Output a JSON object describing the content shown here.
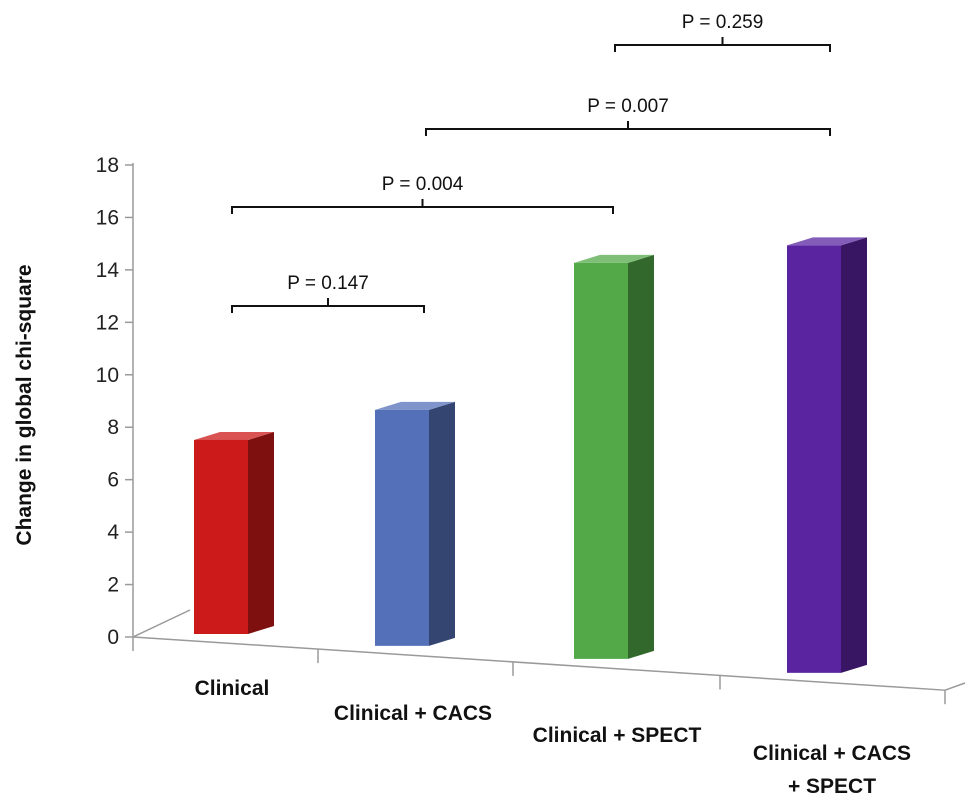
{
  "chart_data": {
    "type": "bar",
    "style": "3d",
    "title": "",
    "xlabel": "",
    "ylabel": "Change in global chi-square",
    "ylim": [
      0,
      18
    ],
    "yticks": [
      0,
      2,
      4,
      6,
      8,
      10,
      12,
      14,
      16,
      18
    ],
    "grid": false,
    "legend": "none",
    "categories": [
      [
        "Clinical"
      ],
      [
        "Clinical + CACS"
      ],
      [
        "Clinical + SPECT"
      ],
      [
        "Clinical + CACS",
        "+ SPECT"
      ]
    ],
    "values": [
      7.4,
      9.0,
      15.1,
      16.3
    ],
    "colors": [
      "#cc1a1a",
      "#5470b8",
      "#53a848",
      "#5a24a0"
    ],
    "comparisons": [
      {
        "from": 0,
        "to": 1,
        "label": "P = 0.147"
      },
      {
        "from": 0,
        "to": 2,
        "label": "P = 0.004"
      },
      {
        "from": 1,
        "to": 3,
        "label": "P = 0.007"
      },
      {
        "from": 2,
        "to": 3,
        "label": "P = 0.259"
      }
    ]
  }
}
